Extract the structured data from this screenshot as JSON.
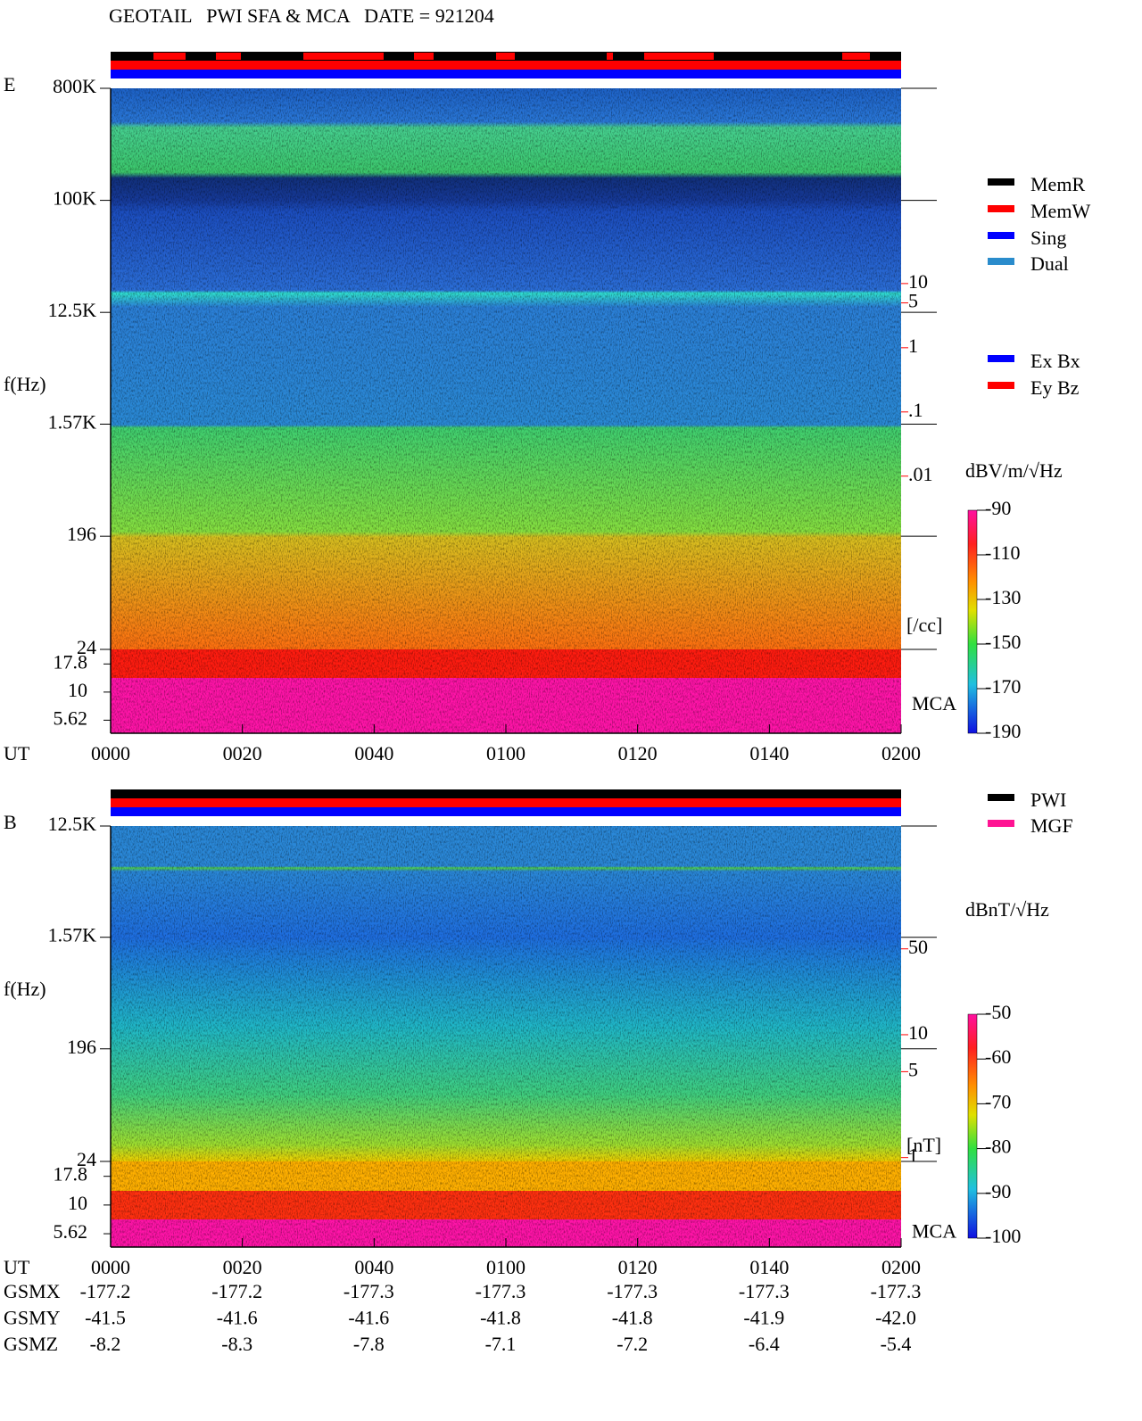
{
  "header": {
    "title": "GEOTAIL   PWI SFA & MCA   DATE = 921204"
  },
  "chart_data": [
    {
      "type": "spectrogram",
      "panel_label": "E",
      "y_label": "f(Hz)",
      "ylog": true,
      "ylim": [
        24,
        800000
      ],
      "yticks": [
        {
          "value": 800000,
          "label": "800K"
        },
        {
          "value": 100000,
          "label": "100K"
        },
        {
          "value": 12500,
          "label": "12.5K"
        },
        {
          "value": 1570,
          "label": "1.57K"
        },
        196,
        24
      ],
      "mca_label": "MCA",
      "mca_ylim": [
        4.3,
        24
      ],
      "mca_ticks": [
        17.8,
        10,
        5.62
      ],
      "x_label": "UT",
      "xlim": [
        0,
        120
      ],
      "xticks": [
        {
          "value": 0,
          "label": "0000"
        },
        {
          "value": 20,
          "label": "0020"
        },
        {
          "value": 40,
          "label": "0040"
        },
        {
          "value": 60,
          "label": "0100"
        },
        {
          "value": 80,
          "label": "0120"
        },
        {
          "value": 100,
          "label": "0140"
        },
        {
          "value": 120,
          "label": "0200"
        }
      ],
      "y2log": true,
      "y2lim": [
        2e-05,
        11000
      ],
      "y2ticks": [
        10,
        5,
        1,
        {
          "value": 0.1,
          "label": ".1"
        },
        {
          "value": 0.01,
          "label": ".01"
        }
      ],
      "y2_label": "[/cc]",
      "y2_color": "#ff0000",
      "colorbar_label": "dBV/m/√Hz",
      "colorbar_lim": [
        -190,
        -90
      ],
      "colorbar_ticks": [
        -90,
        -110,
        -130,
        -150,
        -170,
        -190
      ],
      "legend": [
        {
          "name": "MemR",
          "color": "#000000"
        },
        {
          "name": "MemW",
          "color": "#ff0000"
        },
        {
          "name": "Sing",
          "color": "#0000ff"
        },
        {
          "name": "Dual",
          "color": "#2a8ccc"
        }
      ],
      "legend2": [
        {
          "name": "Ex Bx",
          "color": "#0000ff"
        },
        {
          "name": "Ey Bz",
          "color": "#ff0000"
        }
      ]
    },
    {
      "type": "spectrogram",
      "panel_label": "B",
      "y_label": "f(Hz)",
      "ylog": true,
      "ylim": [
        24,
        12500
      ],
      "yticks": [
        {
          "value": 12500,
          "label": "12.5K"
        },
        {
          "value": 1570,
          "label": "1.57K"
        },
        196,
        24
      ],
      "mca_label": "MCA",
      "mca_ylim": [
        4.3,
        24
      ],
      "mca_ticks": [
        17.8,
        10,
        5.62
      ],
      "x_label": "UT",
      "xlim": [
        0,
        120
      ],
      "xticks": [
        {
          "value": 0,
          "label": "0000"
        },
        {
          "value": 20,
          "label": "0020"
        },
        {
          "value": 40,
          "label": "0040"
        },
        {
          "value": 60,
          "label": "0100"
        },
        {
          "value": 80,
          "label": "0120"
        },
        {
          "value": 100,
          "label": "0140"
        },
        {
          "value": 120,
          "label": "0200"
        }
      ],
      "y2log": true,
      "y2lim": [
        0.93,
        500
      ],
      "y2ticks": [
        50,
        10,
        5,
        1
      ],
      "y2_label": "[nT]",
      "y2_color": "#ff0000",
      "colorbar_label": "dBnT/√Hz",
      "colorbar_lim": [
        -100,
        -50
      ],
      "colorbar_ticks": [
        -50,
        -60,
        -70,
        -80,
        -90,
        -100
      ],
      "legend": [
        {
          "name": "PWI",
          "color": "#000000"
        },
        {
          "name": "MGF",
          "color": "#ff1493"
        }
      ],
      "ephemeris": {
        "labels": [
          "GSMX",
          "GSMY",
          "GSMZ"
        ],
        "rows": [
          [
            "-177.2",
            "-177.2",
            "-177.3",
            "-177.3",
            "-177.3",
            "-177.3",
            "-177.3"
          ],
          [
            "-41.5",
            "-41.6",
            "-41.6",
            "-41.8",
            "-41.8",
            "-41.9",
            "-42.0"
          ],
          [
            "-8.2",
            "-8.3",
            "-7.8",
            "-7.1",
            "-7.2",
            "-6.4",
            "-5.4"
          ]
        ]
      }
    }
  ]
}
